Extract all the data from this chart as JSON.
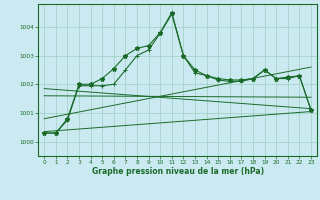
{
  "title": "Graphe pression niveau de la mer (hPa)",
  "background_color": "#cbe9f0",
  "grid_color": "#9ecfbe",
  "line_color": "#1a6b2a",
  "xlim": [
    -0.5,
    23.5
  ],
  "ylim": [
    999.5,
    1004.8
  ],
  "yticks": [
    1000,
    1001,
    1002,
    1003,
    1004
  ],
  "xticks": [
    0,
    1,
    2,
    3,
    4,
    5,
    6,
    7,
    8,
    9,
    10,
    11,
    12,
    13,
    14,
    15,
    16,
    17,
    18,
    19,
    20,
    21,
    22,
    23
  ],
  "series1_x": [
    0,
    1,
    2,
    3,
    4,
    5,
    6,
    7,
    8,
    9,
    10,
    11,
    12,
    13,
    14,
    15,
    16,
    17,
    18,
    19,
    20,
    21,
    22,
    23
  ],
  "series1_y": [
    1000.3,
    1000.3,
    1000.8,
    1002.0,
    1002.0,
    1002.2,
    1002.55,
    1003.0,
    1003.25,
    1003.35,
    1003.8,
    1004.5,
    1003.0,
    1002.5,
    1002.3,
    1002.2,
    1002.15,
    1002.15,
    1002.2,
    1002.5,
    1002.2,
    1002.25,
    1002.3,
    1001.1
  ],
  "series2_x": [
    0,
    1,
    2,
    3,
    4,
    5,
    6,
    7,
    8,
    9,
    10,
    11,
    12,
    13,
    14,
    15,
    16,
    17,
    18,
    19,
    20,
    21,
    22,
    23
  ],
  "series2_y": [
    1000.3,
    1000.3,
    1000.75,
    1001.95,
    1001.95,
    1001.95,
    1002.0,
    1002.5,
    1003.0,
    1003.2,
    1003.78,
    1004.45,
    1003.0,
    1002.4,
    1002.3,
    1002.15,
    1002.1,
    1002.1,
    1002.2,
    1002.5,
    1002.2,
    1002.2,
    1002.3,
    1001.1
  ],
  "line1_x": [
    0,
    23
  ],
  "line1_y": [
    1000.35,
    1001.05
  ],
  "line2_x": [
    0,
    23
  ],
  "line2_y": [
    1001.6,
    1001.55
  ],
  "line3_x": [
    0,
    23
  ],
  "line3_y": [
    1001.85,
    1001.15
  ],
  "line4_x": [
    0,
    23
  ],
  "line4_y": [
    1000.8,
    1002.6
  ]
}
